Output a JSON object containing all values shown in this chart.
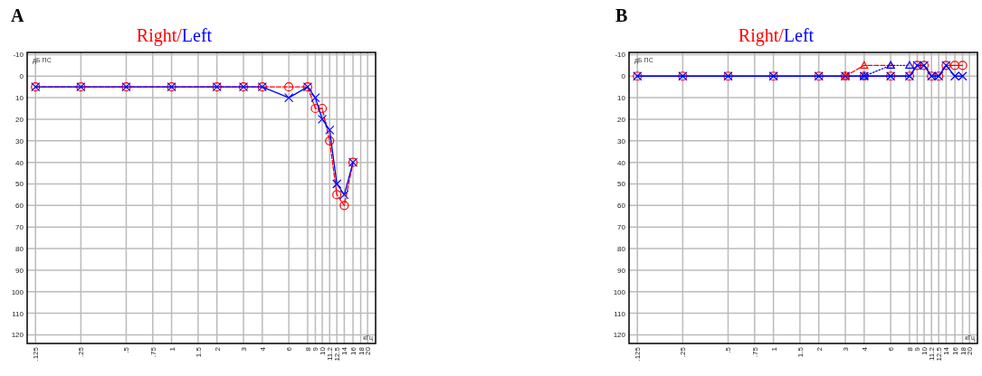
{
  "chart_data": [
    {
      "type": "line",
      "title": "Right/Left",
      "xlabel": "кГц",
      "ylabel": "дБ ПС",
      "annotations": [
        "A"
      ],
      "log": "x",
      "grid": true,
      "xlim": [
        0.11,
        22.6
      ],
      "ylim": [
        124,
        -11
      ],
      "xticks": [
        {
          "value": 0.125,
          "label": ".125"
        },
        {
          "value": 0.25,
          "label": ".25"
        },
        {
          "value": 0.5,
          "label": ".5"
        },
        {
          "value": 0.75,
          "label": ".75"
        },
        1,
        1.5,
        2,
        3,
        4,
        6,
        8,
        9,
        10,
        {
          "value": 11.2,
          "label": "11.2"
        },
        {
          "value": 12.5,
          "label": "12.5"
        },
        14,
        16,
        18,
        20
      ],
      "yticks": [
        -10,
        0,
        10,
        20,
        30,
        40,
        50,
        60,
        70,
        80,
        90,
        100,
        110,
        120
      ],
      "series": [
        {
          "color": "#ff0000",
          "marker": "circle",
          "line_style": "dashed",
          "x": [
            0.125,
            0.25,
            0.5,
            1,
            2,
            3,
            4,
            6,
            8,
            9,
            10,
            11.2,
            12.5,
            14,
            16
          ],
          "values": [
            5,
            5,
            5,
            5,
            5,
            5,
            5,
            5,
            5,
            15,
            15,
            30,
            55,
            60,
            40
          ]
        },
        {
          "color": "#0000ff",
          "marker": "cross",
          "line_style": "solid",
          "x": [
            0.125,
            0.25,
            0.5,
            1,
            2,
            3,
            4,
            6,
            8,
            9,
            10,
            11.2,
            12.5,
            14,
            16
          ],
          "values": [
            5,
            5,
            5,
            5,
            5,
            5,
            5,
            10,
            5,
            10,
            20,
            25,
            50,
            55,
            40
          ]
        }
      ]
    },
    {
      "type": "line",
      "title": "Right/Left",
      "xlabel": "кГц",
      "ylabel": "дБ ПС",
      "annotations": [
        "B"
      ],
      "log": "x",
      "grid": true,
      "xlim": [
        0.11,
        22.6
      ],
      "ylim": [
        124,
        -11
      ],
      "xticks": [
        {
          "value": 0.125,
          "label": ".125"
        },
        {
          "value": 0.25,
          "label": ".25"
        },
        {
          "value": 0.5,
          "label": ".5"
        },
        {
          "value": 0.75,
          "label": ".75"
        },
        1,
        1.5,
        2,
        3,
        4,
        6,
        8,
        9,
        10,
        {
          "value": 11.2,
          "label": "11.2"
        },
        {
          "value": 12.5,
          "label": "12.5"
        },
        14,
        16,
        18,
        20
      ],
      "yticks": [
        -10,
        0,
        10,
        20,
        30,
        40,
        50,
        60,
        70,
        80,
        90,
        100,
        110,
        120
      ],
      "series": [
        {
          "color": "#ff0000",
          "marker": "circle",
          "line_style": "solid",
          "x": [
            0.125,
            0.25,
            0.5,
            1,
            2,
            3,
            4,
            6,
            8,
            9,
            10,
            11.2,
            12.5,
            14,
            16,
            18
          ],
          "values": [
            0,
            0,
            0,
            0,
            0,
            0,
            0,
            0,
            0,
            -5,
            -5,
            0,
            0,
            -5,
            -5,
            -5
          ]
        },
        {
          "color": "#0000ff",
          "marker": "cross",
          "line_style": "solid",
          "x": [
            0.125,
            0.25,
            0.5,
            1,
            2,
            3,
            4,
            6,
            8,
            9,
            10,
            11.2,
            12.5,
            14,
            16,
            18
          ],
          "values": [
            0,
            0,
            0,
            0,
            0,
            0,
            0,
            0,
            0,
            -5,
            -5,
            0,
            0,
            -5,
            0,
            0
          ]
        },
        {
          "color": "#ff0000",
          "marker": "triangle",
          "line_style": "dashed",
          "x": [
            3,
            4,
            6
          ],
          "values": [
            0,
            -5,
            -5
          ]
        },
        {
          "color": "#0000ff",
          "marker": "triangle",
          "line_style": "dotted",
          "x": [
            4,
            6,
            8
          ],
          "values": [
            0,
            -5,
            -5
          ]
        }
      ]
    }
  ]
}
